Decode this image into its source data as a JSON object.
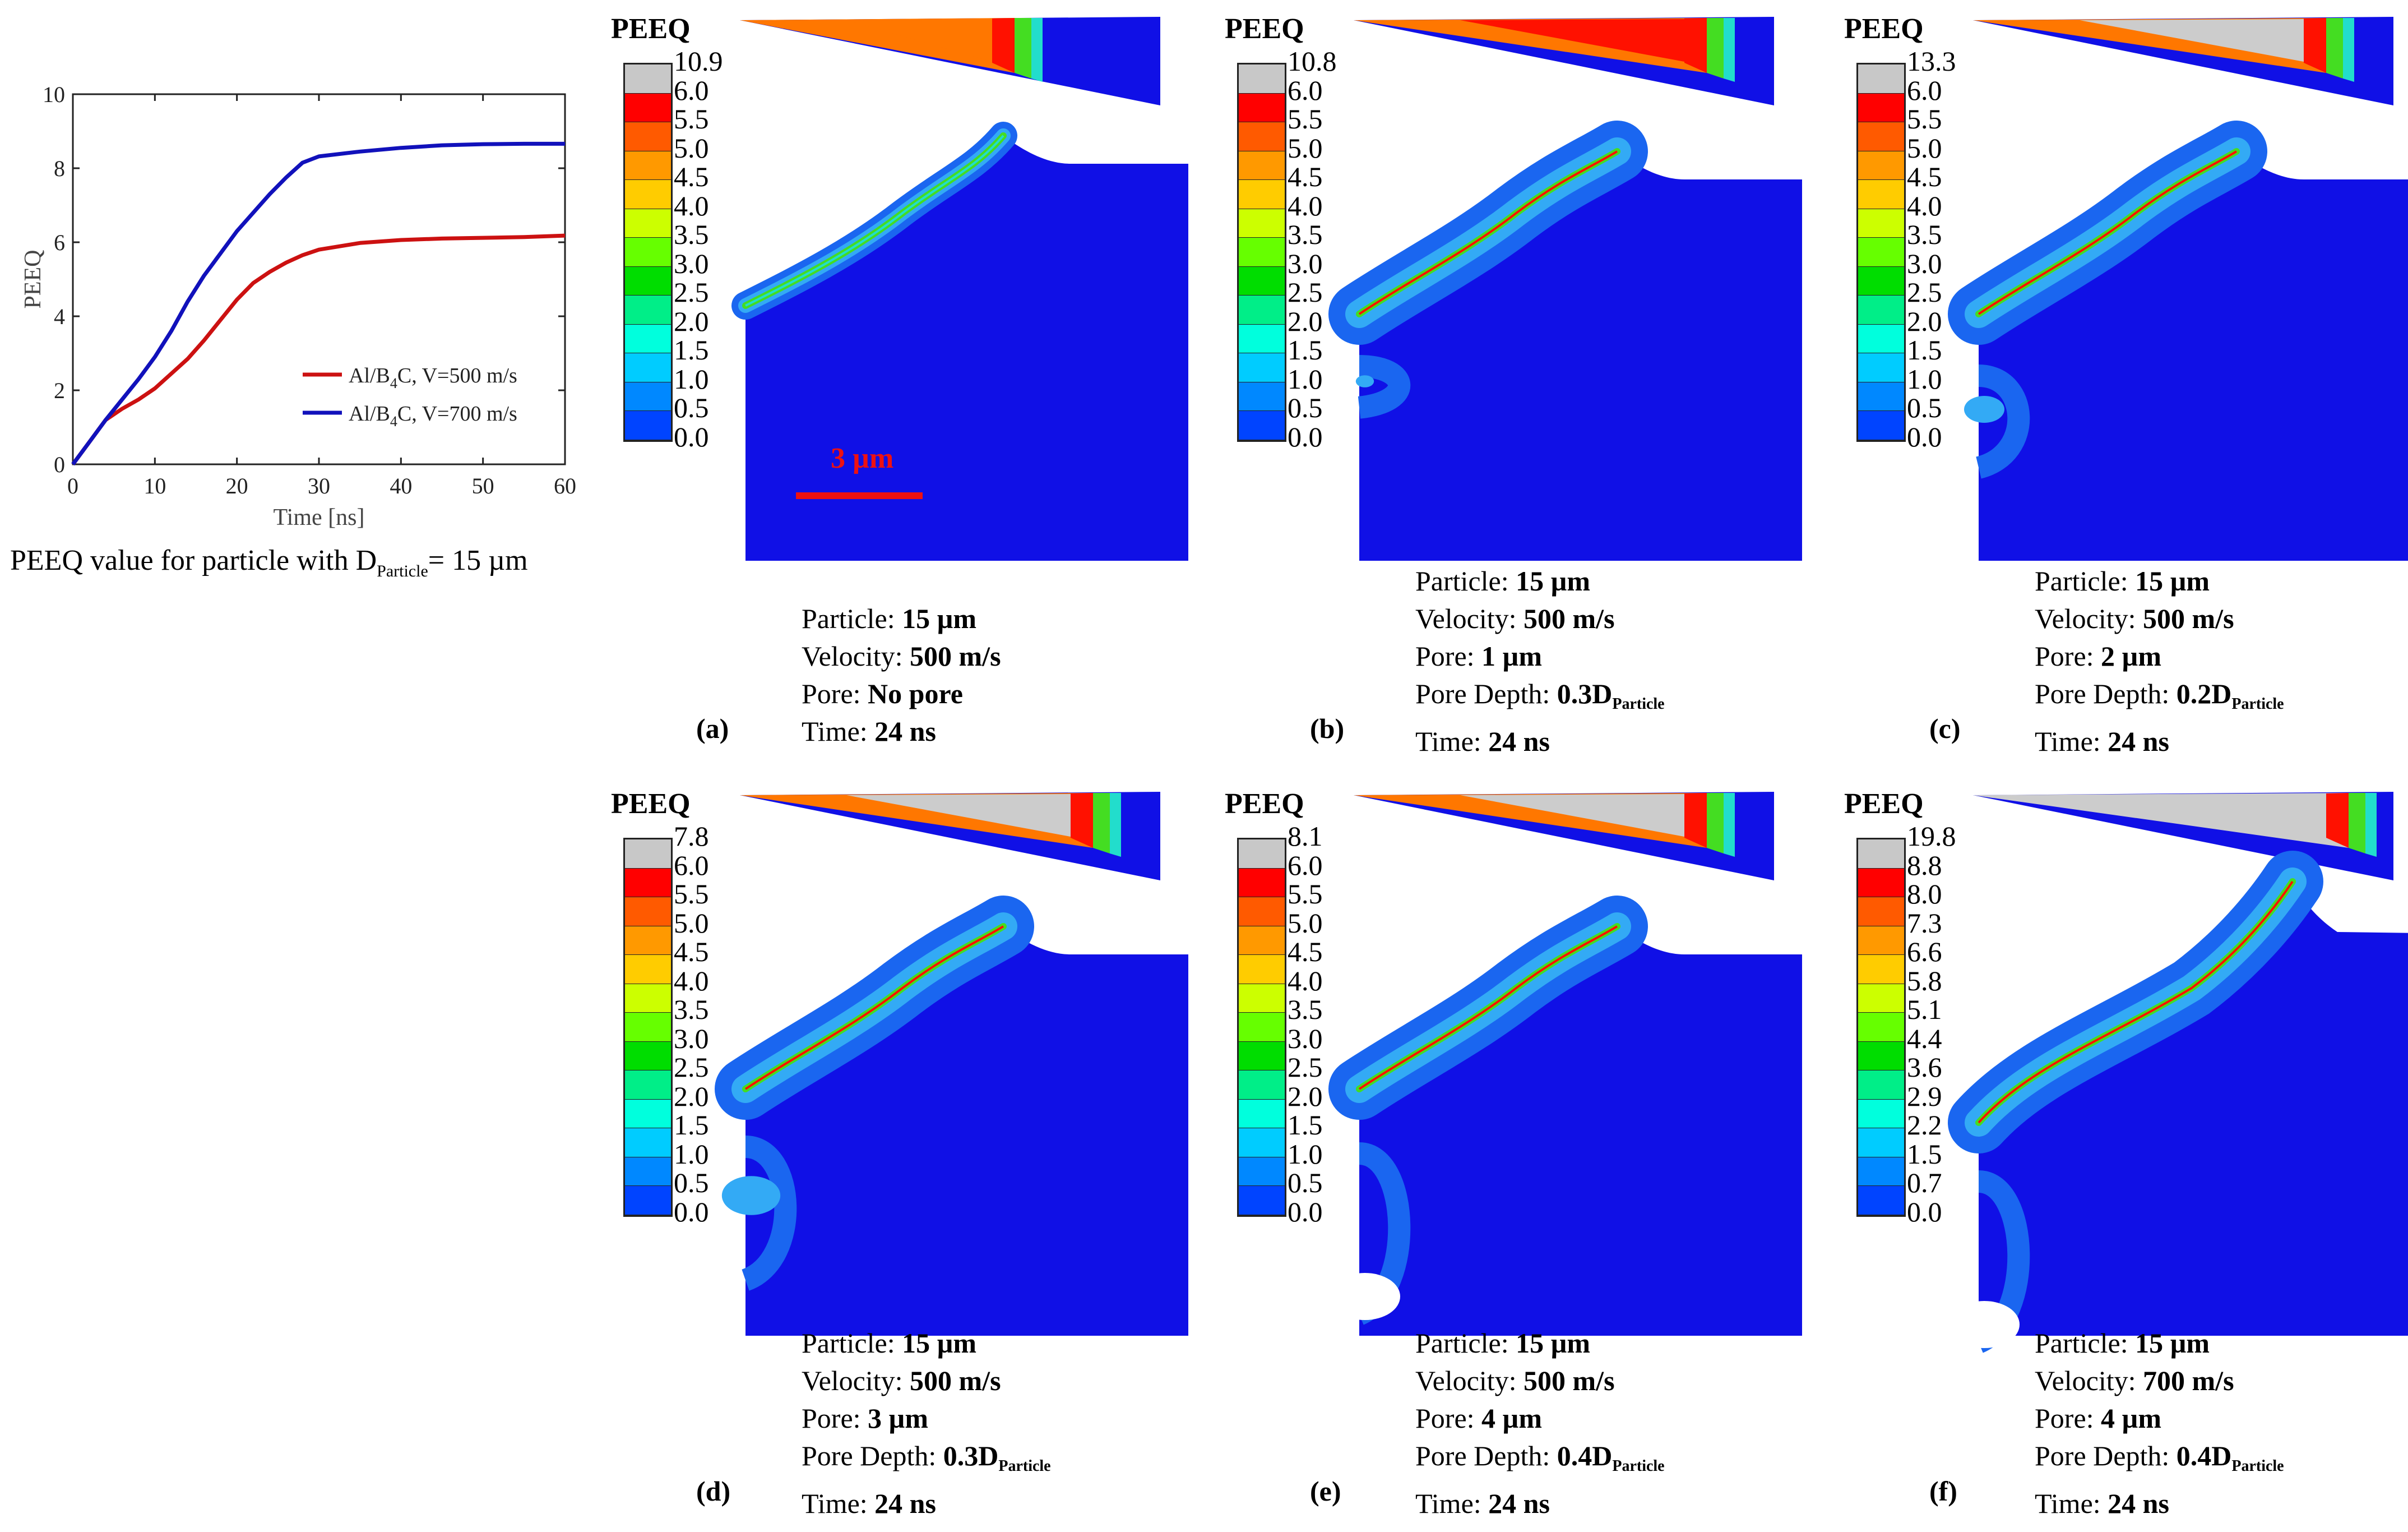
{
  "chart_data": {
    "type": "line",
    "title": "",
    "xlabel": "Time [ns]",
    "ylabel": "PEEQ",
    "xlim": [
      0,
      60
    ],
    "ylim": [
      0,
      10
    ],
    "xticks": [
      "0",
      "10",
      "20",
      "30",
      "40",
      "50",
      "60"
    ],
    "yticks": [
      "0",
      "2",
      "4",
      "6",
      "8",
      "10"
    ],
    "legend_position": "bottom-right",
    "series": [
      {
        "name": "Al/B4C, V=500 m/s",
        "legend_main": "Al/B",
        "legend_sub": "4",
        "legend_rest": "C, V=500 m/s",
        "color": "#cc1111",
        "x": [
          0,
          2,
          4,
          6,
          8,
          10,
          12,
          14,
          16,
          18,
          20,
          22,
          24,
          26,
          28,
          30,
          35,
          40,
          45,
          50,
          55,
          60
        ],
        "y": [
          0,
          0.6,
          1.2,
          1.5,
          1.75,
          2.05,
          2.45,
          2.85,
          3.35,
          3.9,
          4.45,
          4.9,
          5.2,
          5.45,
          5.65,
          5.8,
          5.98,
          6.06,
          6.1,
          6.12,
          6.14,
          6.18
        ]
      },
      {
        "name": "Al/B4C, V=700 m/s",
        "legend_main": "Al/B",
        "legend_sub": "4",
        "legend_rest": "C, V=700 m/s",
        "color": "#1111bb",
        "x": [
          0,
          2,
          4,
          6,
          8,
          10,
          12,
          14,
          16,
          18,
          20,
          22,
          24,
          26,
          28,
          30,
          35,
          40,
          45,
          50,
          55,
          60
        ],
        "y": [
          0,
          0.6,
          1.2,
          1.75,
          2.3,
          2.9,
          3.6,
          4.4,
          5.1,
          5.7,
          6.3,
          6.8,
          7.3,
          7.75,
          8.15,
          8.32,
          8.45,
          8.55,
          8.62,
          8.65,
          8.66,
          8.66
        ]
      }
    ]
  },
  "chart_caption": {
    "main": "PEEQ  value for particle with D",
    "sub": "Particle",
    "rest": "= 15 µm"
  },
  "scale_bar_label": "3 µm",
  "colors": {
    "solid_blue": "#1010e6",
    "gray": "#cccccc"
  },
  "panels": [
    {
      "letter": "(a)",
      "title": "PEEQ",
      "max_label": "10.9",
      "legend_labels": [
        "10.9",
        "6.0",
        "5.5",
        "5.0",
        "4.5",
        "4.0",
        "3.5",
        "3.0",
        "2.5",
        "2.0",
        "1.5",
        "1.0",
        "0.5",
        "0.0"
      ],
      "params": [
        {
          "label": "Particle: ",
          "value": "15 µm"
        },
        {
          "label": "Velocity: ",
          "value": "500 m/s"
        },
        {
          "label": "Pore: ",
          "value": "No pore"
        },
        {
          "label": "Time: ",
          "value": "24 ns"
        }
      ]
    },
    {
      "letter": "(b)",
      "title": "PEEQ",
      "legend_labels": [
        "10.8",
        "6.0",
        "5.5",
        "5.0",
        "4.5",
        "4.0",
        "3.5",
        "3.0",
        "2.5",
        "2.0",
        "1.5",
        "1.0",
        "0.5",
        "0.0"
      ],
      "params": [
        {
          "label": "Particle: ",
          "value": "15 µm"
        },
        {
          "label": "Velocity: ",
          "value": "500 m/s"
        },
        {
          "label": "Pore: ",
          "value": "1 µm"
        },
        {
          "label": "Pore Depth: ",
          "value": "0.3D",
          "sub": "Particle"
        },
        {
          "label": "Time: ",
          "value": "24 ns"
        }
      ]
    },
    {
      "letter": "(c)",
      "title": "PEEQ",
      "legend_labels": [
        "13.3",
        "6.0",
        "5.5",
        "5.0",
        "4.5",
        "4.0",
        "3.5",
        "3.0",
        "2.5",
        "2.0",
        "1.5",
        "1.0",
        "0.5",
        "0.0"
      ],
      "params": [
        {
          "label": "Particle: ",
          "value": "15 µm"
        },
        {
          "label": "Velocity: ",
          "value": "500 m/s"
        },
        {
          "label": "Pore: ",
          "value": "2 µm"
        },
        {
          "label": "Pore Depth: ",
          "value": "0.2D",
          "sub": "Particle"
        },
        {
          "label": "Time: ",
          "value": "24 ns"
        }
      ]
    },
    {
      "letter": "(d)",
      "title": "PEEQ",
      "legend_labels": [
        "7.8",
        "6.0",
        "5.5",
        "5.0",
        "4.5",
        "4.0",
        "3.5",
        "3.0",
        "2.5",
        "2.0",
        "1.5",
        "1.0",
        "0.5",
        "0.0"
      ],
      "params": [
        {
          "label": "Particle: ",
          "value": "15 µm"
        },
        {
          "label": "Velocity: ",
          "value": "500 m/s"
        },
        {
          "label": "Pore: ",
          "value": "3 µm"
        },
        {
          "label": "Pore Depth: ",
          "value": "0.3D",
          "sub": "Particle"
        },
        {
          "label": "Time: ",
          "value": "24 ns"
        }
      ]
    },
    {
      "letter": "(e)",
      "title": "PEEQ",
      "legend_labels": [
        "8.1",
        "6.0",
        "5.5",
        "5.0",
        "4.5",
        "4.0",
        "3.5",
        "3.0",
        "2.5",
        "2.0",
        "1.5",
        "1.0",
        "0.5",
        "0.0"
      ],
      "params": [
        {
          "label": "Particle: ",
          "value": "15 µm"
        },
        {
          "label": "Velocity: ",
          "value": "500 m/s"
        },
        {
          "label": "Pore: ",
          "value": "4 µm"
        },
        {
          "label": "Pore Depth: ",
          "value": "0.4D",
          "sub": "Particle"
        },
        {
          "label": "Time: ",
          "value": "24 ns"
        }
      ]
    },
    {
      "letter": "(f)",
      "title": "PEEQ",
      "legend_labels": [
        "19.8",
        "8.8",
        "8.0",
        "7.3",
        "6.6",
        "5.8",
        "5.1",
        "4.4",
        "3.6",
        "2.9",
        "2.2",
        "1.5",
        "0.7",
        "0.0"
      ],
      "params": [
        {
          "label": "Particle: ",
          "value": "15 µm"
        },
        {
          "label": "Velocity: ",
          "value": "700 m/s"
        },
        {
          "label": "Pore: ",
          "value": "4 µm"
        },
        {
          "label": "Pore Depth: ",
          "value": "0.4D",
          "sub": "Particle"
        },
        {
          "label": "Time: ",
          "value": "24 ns"
        }
      ]
    }
  ],
  "legend_colors": [
    "#c8c8c8",
    "#ff0000",
    "#ff5a00",
    "#ff9900",
    "#ffcc00",
    "#ccff00",
    "#66ff00",
    "#00dd00",
    "#00ee88",
    "#00ffdd",
    "#00ccff",
    "#0088ff",
    "#0044ff",
    "#0000ff"
  ]
}
